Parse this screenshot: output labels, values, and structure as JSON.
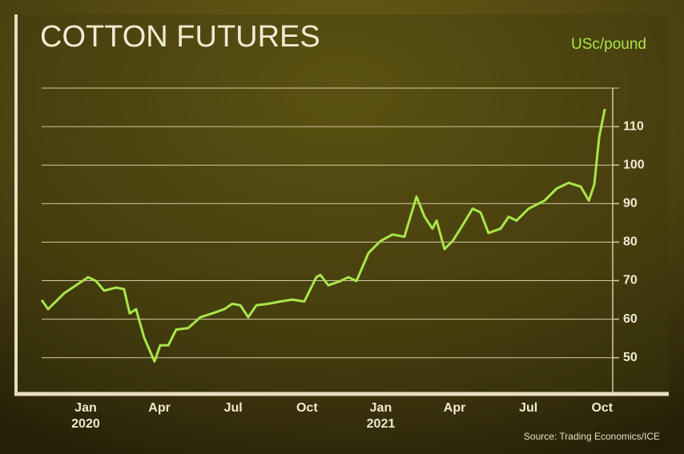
{
  "chart_data": {
    "type": "line",
    "title": "COTTON FUTURES",
    "unit_label": "USc/pound",
    "source": "Source: Trading Economics/ICE",
    "xlim": [
      -1.79,
      21.43
    ],
    "xticks": [
      {
        "value": 0,
        "label": "Jan"
      },
      {
        "value": 3,
        "label": "Apr"
      },
      {
        "value": 6,
        "label": "Jul"
      },
      {
        "value": 9,
        "label": "Oct"
      },
      {
        "value": 12,
        "label": "Jan"
      },
      {
        "value": 15,
        "label": "Apr"
      },
      {
        "value": 18,
        "label": "Jul"
      },
      {
        "value": 21,
        "label": "Oct"
      }
    ],
    "year_labels": [
      {
        "value": 0,
        "label": "2020"
      },
      {
        "value": 12,
        "label": "2021"
      }
    ],
    "ylim": [
      41,
      120
    ],
    "yticks": [
      50,
      60,
      70,
      80,
      90,
      100,
      110
    ],
    "grid": true,
    "series": [
      {
        "name": "Cotton futures",
        "color": "#a8e64b",
        "x": [
          -1.79,
          -1.53,
          -1.21,
          -0.88,
          -0.39,
          0.1,
          0.42,
          0.75,
          1.24,
          1.56,
          1.79,
          2.05,
          2.38,
          2.8,
          3.03,
          3.36,
          3.68,
          4.17,
          4.66,
          5.15,
          5.64,
          5.96,
          6.29,
          6.61,
          6.94,
          7.43,
          7.92,
          8.4,
          8.89,
          9.38,
          9.54,
          9.87,
          10.36,
          10.68,
          11.01,
          11.5,
          11.99,
          12.48,
          12.96,
          13.45,
          13.78,
          14.1,
          14.27,
          14.59,
          14.92,
          15.24,
          15.73,
          16.06,
          16.38,
          16.87,
          17.2,
          17.52,
          18.01,
          18.66,
          19.15,
          19.64,
          20.13,
          20.46,
          20.68,
          20.88,
          21.11
        ],
        "values": [
          65.0,
          62.6,
          64.6,
          66.7,
          68.8,
          70.9,
          69.9,
          67.4,
          68.2,
          67.8,
          61.5,
          62.6,
          55.2,
          49.0,
          53.2,
          53.2,
          57.3,
          57.7,
          60.5,
          61.5,
          62.6,
          64.0,
          63.6,
          60.5,
          63.6,
          64.0,
          64.6,
          65.1,
          64.6,
          70.9,
          71.5,
          68.8,
          69.9,
          70.9,
          69.9,
          77.2,
          80.3,
          82.0,
          81.4,
          91.8,
          86.6,
          83.5,
          85.6,
          78.2,
          80.3,
          83.5,
          88.7,
          87.7,
          82.4,
          83.5,
          86.6,
          85.6,
          88.7,
          90.8,
          93.9,
          95.4,
          94.4,
          90.8,
          95.0,
          107.3,
          114.6
        ]
      }
    ]
  }
}
